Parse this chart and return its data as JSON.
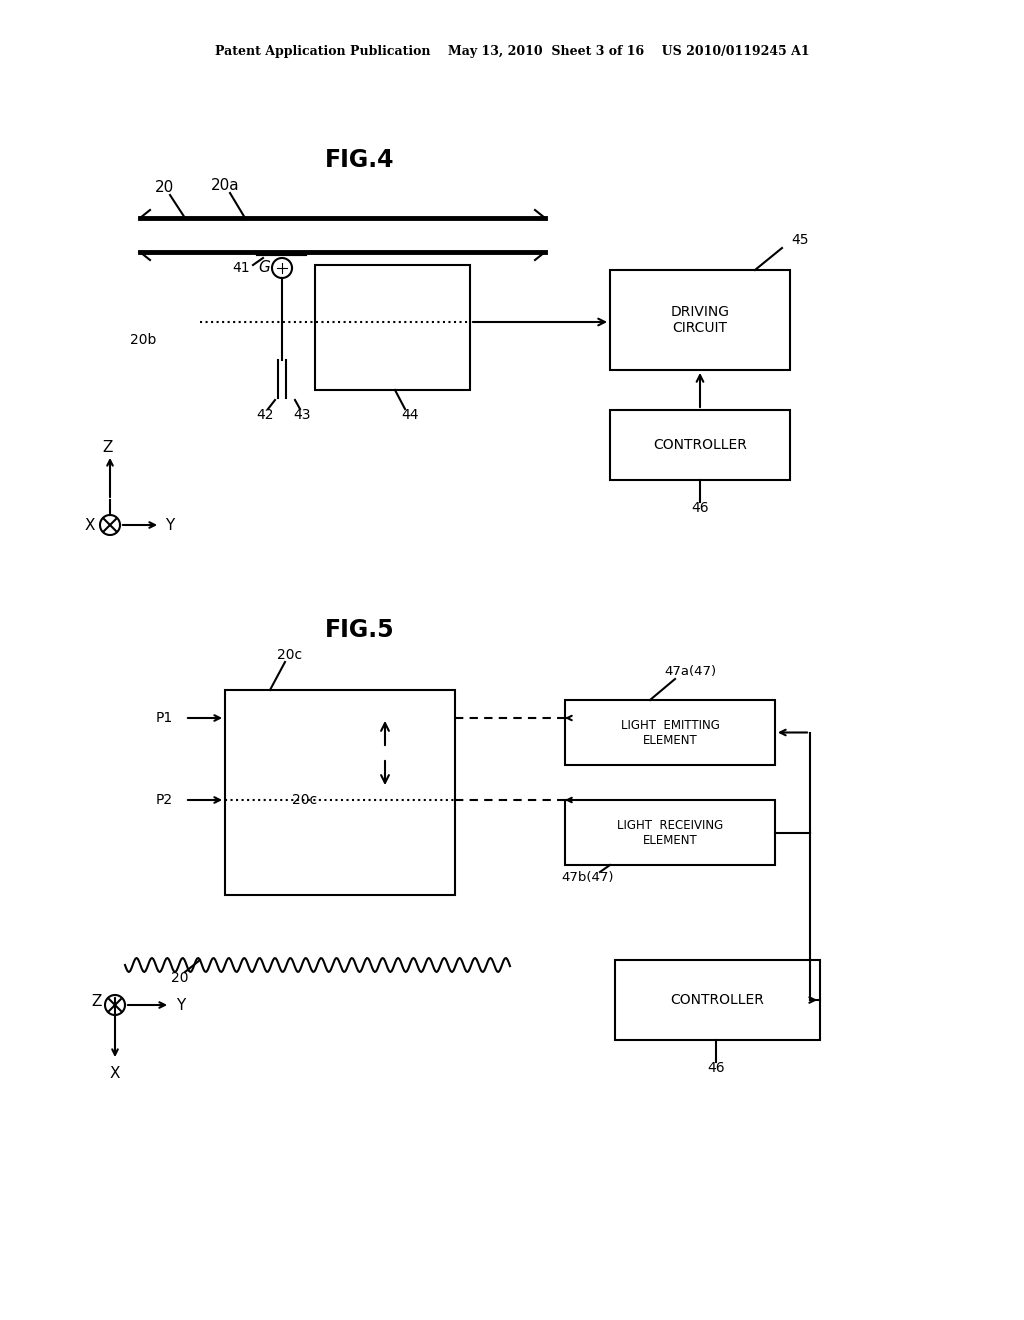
{
  "bg_color": "#ffffff",
  "header": "Patent Application Publication    May 13, 2010  Sheet 3 of 16    US 2010/0119245 A1",
  "fig4_title": "FIG.4",
  "fig5_title": "FIG.5",
  "lw": 1.5
}
